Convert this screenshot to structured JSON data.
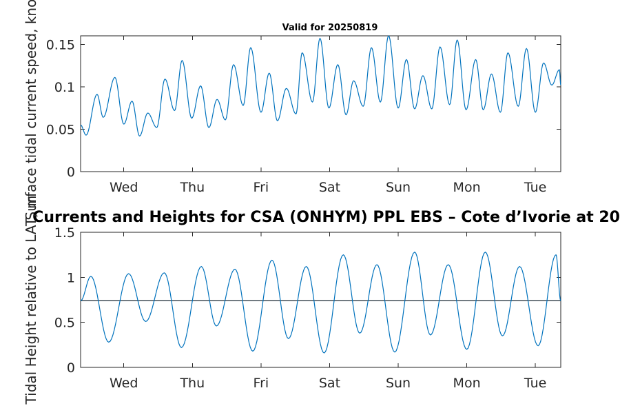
{
  "chart_data": [
    {
      "type": "line",
      "title": "Valid for 20250819",
      "ylabel": "Surface tidal current speed, knots",
      "xlabel": "",
      "x_tick_labels": [
        "Wed",
        "Thu",
        "Fri",
        "Sat",
        "Sun",
        "Mon",
        "Tue"
      ],
      "y_tick_labels": [
        "0",
        "0.05",
        "0.1",
        "0.15"
      ],
      "y_ticks": [
        0,
        0.05,
        0.1,
        0.15
      ],
      "ylim": [
        0,
        0.16
      ],
      "xlim_days": [
        -0.63,
        6.37
      ],
      "grid": false,
      "line_color": "#0072BD",
      "series": [
        {
          "x_days": [
            -0.63,
            -0.55,
            -0.39,
            -0.3,
            -0.13,
            0.0,
            0.12,
            0.23,
            0.35,
            0.48,
            0.6,
            0.74,
            0.85,
            0.99,
            1.12,
            1.24,
            1.36,
            1.48,
            1.6,
            1.74,
            1.85,
            2.0,
            2.12,
            2.24,
            2.37,
            2.51,
            2.6,
            2.75,
            2.86,
            2.99,
            3.12,
            3.24,
            3.35,
            3.49,
            3.61,
            3.74,
            3.86,
            4.0,
            4.12,
            4.24,
            4.36,
            4.49,
            4.61,
            4.75,
            4.86,
            4.99,
            5.13,
            5.24,
            5.36,
            5.49,
            5.6,
            5.75,
            5.87,
            6.0,
            6.12,
            6.24,
            6.35,
            6.37
          ],
          "values": [
            0.055,
            0.043,
            0.091,
            0.064,
            0.111,
            0.056,
            0.083,
            0.042,
            0.069,
            0.052,
            0.109,
            0.072,
            0.131,
            0.063,
            0.101,
            0.052,
            0.085,
            0.061,
            0.126,
            0.078,
            0.146,
            0.07,
            0.116,
            0.06,
            0.098,
            0.068,
            0.14,
            0.082,
            0.157,
            0.075,
            0.126,
            0.067,
            0.107,
            0.077,
            0.146,
            0.082,
            0.16,
            0.075,
            0.132,
            0.074,
            0.113,
            0.074,
            0.147,
            0.079,
            0.155,
            0.073,
            0.132,
            0.073,
            0.115,
            0.07,
            0.14,
            0.077,
            0.145,
            0.07,
            0.128,
            0.102,
            0.12,
            0.102
          ]
        }
      ]
    },
    {
      "type": "line",
      "title": "Currents and Heights for CSA (ONHYM) PPL EBS  – Cote d’Ivorie at 20",
      "ylabel": "Tidal Height relative to LAT, m",
      "xlabel": "",
      "x_tick_labels": [
        "Wed",
        "Thu",
        "Fri",
        "Sat",
        "Sun",
        "Mon",
        "Tue"
      ],
      "y_tick_labels": [
        "0",
        "0.5",
        "1",
        "1.5"
      ],
      "y_ticks": [
        0,
        0.5,
        1,
        1.5
      ],
      "ylim": [
        0,
        1.5
      ],
      "xlim_days": [
        -0.63,
        6.37
      ],
      "grid": false,
      "line_color": "#0072BD",
      "reference_line": {
        "value": 0.74,
        "color": "#2b3a44"
      },
      "series": [
        {
          "x_days": [
            -0.63,
            -0.48,
            -0.22,
            0.07,
            0.32,
            0.59,
            0.84,
            1.13,
            1.35,
            1.62,
            1.88,
            2.16,
            2.4,
            2.66,
            2.92,
            3.2,
            3.44,
            3.69,
            3.95,
            4.24,
            4.47,
            4.73,
            5.0,
            5.27,
            5.52,
            5.77,
            6.04,
            6.3,
            6.37
          ],
          "values": [
            0.74,
            1.01,
            0.28,
            1.04,
            0.51,
            1.05,
            0.22,
            1.12,
            0.46,
            1.09,
            0.18,
            1.19,
            0.32,
            1.12,
            0.16,
            1.25,
            0.38,
            1.14,
            0.17,
            1.28,
            0.36,
            1.14,
            0.2,
            1.28,
            0.35,
            1.12,
            0.24,
            1.25,
            0.74
          ]
        }
      ]
    }
  ]
}
